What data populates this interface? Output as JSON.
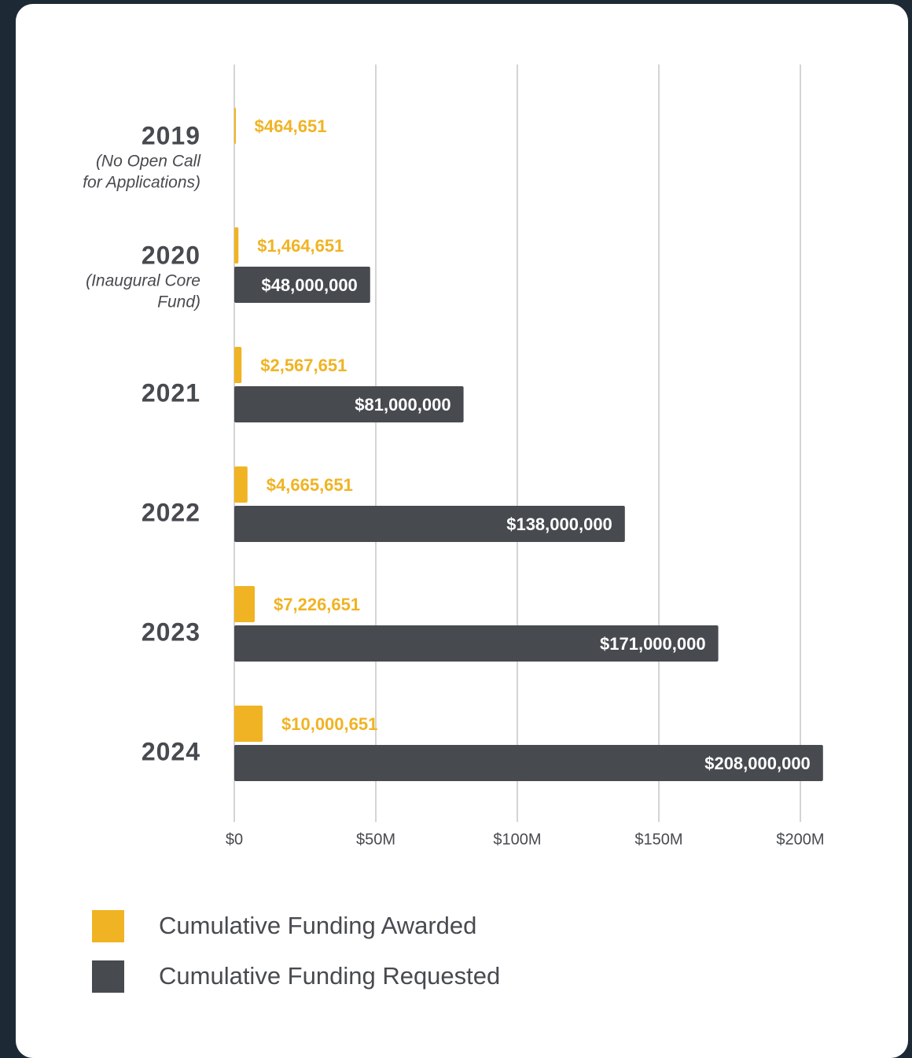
{
  "chart_data": {
    "type": "bar",
    "orientation": "horizontal",
    "categories": [
      "2019",
      "2020",
      "2021",
      "2022",
      "2023",
      "2024"
    ],
    "category_notes": [
      "(No Open Call for Applications)",
      "(Inaugural Core Fund)",
      null,
      null,
      null,
      null
    ],
    "series": [
      {
        "name": "Cumulative Funding Awarded",
        "color": "#f0b323",
        "values": [
          464651,
          1464651,
          2567651,
          4665651,
          7226651,
          10000651
        ],
        "value_labels": [
          "$464,651",
          "$1,464,651",
          "$2,567,651",
          "$4,665,651",
          "$7,226,651",
          "$10,000,651"
        ]
      },
      {
        "name": "Cumulative Funding Requested",
        "color": "#474a4f",
        "values": [
          null,
          48000000,
          81000000,
          138000000,
          171000000,
          208000000
        ],
        "value_labels": [
          null,
          "$48,000,000",
          "$81,000,000",
          "$138,000,000",
          "$171,000,000",
          "$208,000,000"
        ]
      }
    ],
    "xlim": [
      0,
      210000000
    ],
    "xticks": [
      {
        "value": 0,
        "label": "$0"
      },
      {
        "value": 50000000,
        "label": "$50M"
      },
      {
        "value": 100000000,
        "label": "$100M"
      },
      {
        "value": 150000000,
        "label": "$150M"
      },
      {
        "value": 200000000,
        "label": "$200M"
      }
    ],
    "grid": true,
    "legend": "bottom"
  }
}
